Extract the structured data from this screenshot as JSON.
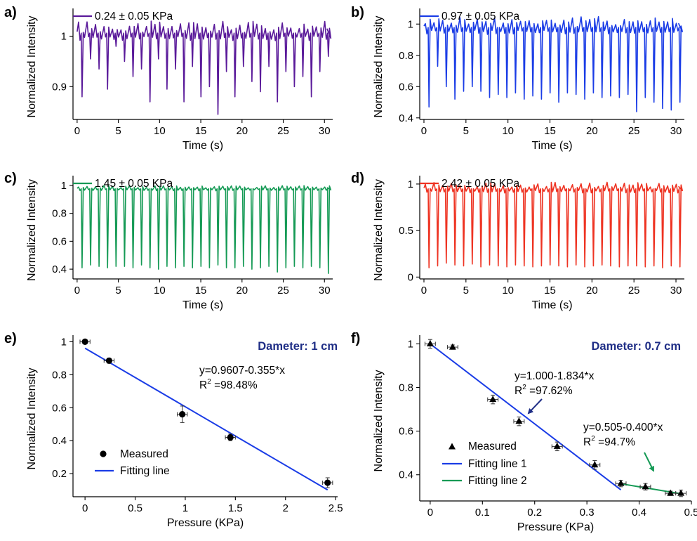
{
  "colors": {
    "purple": "#5a1a9a",
    "blue": "#1a3ce6",
    "green": "#159a55",
    "red": "#ee3322",
    "navy": "#1f2e86",
    "black": "#000000"
  },
  "chart_data": [
    {
      "panel": "a)",
      "type": "line",
      "xlabel": "Time (s)",
      "ylabel": "Normalized Intensity",
      "xlim": [
        -0.5,
        31
      ],
      "ylim": [
        0.835,
        1.055
      ],
      "xticks": [
        "0",
        "5",
        "10",
        "15",
        "20",
        "25",
        "30"
      ],
      "yticks": [
        "0.9",
        "1"
      ],
      "ytick_values": [
        0.9,
        1.0
      ],
      "series": [
        {
          "name": "0.24 ± 0.05 KPa",
          "color": "#5a1a9a"
        }
      ],
      "pattern": {
        "start": 0,
        "end": 30.3,
        "period": 1.03,
        "baseline": 1.0,
        "peak": 1.03,
        "min_values": [
          0.88,
          0.955,
          0.935,
          0.895,
          0.98,
          0.95,
          0.92,
          0.935,
          0.87,
          0.955,
          0.895,
          0.935,
          0.87,
          0.94,
          0.88,
          0.9,
          0.845,
          0.93,
          0.88,
          0.94,
          0.91,
          0.89,
          0.94,
          0.87,
          0.93,
          0.9,
          0.92,
          0.88,
          0.93,
          0.96
        ]
      }
    },
    {
      "panel": "b)",
      "type": "line",
      "xlabel": "Time (s)",
      "ylabel": "Normalized Intensity",
      "xlim": [
        -0.5,
        31
      ],
      "ylim": [
        0.39,
        1.1
      ],
      "xticks": [
        "0",
        "5",
        "10",
        "15",
        "20",
        "25",
        "30"
      ],
      "yticks": [
        "0.4",
        "0.6",
        "0.8",
        "1"
      ],
      "ytick_values": [
        0.4,
        0.6,
        0.8,
        1.0
      ],
      "series": [
        {
          "name": "0.97 ± 0.05 KPa",
          "color": "#1a3ce6"
        }
      ],
      "pattern": {
        "start": 0,
        "end": 30.3,
        "period": 1.03,
        "baseline": 0.96,
        "peak": 1.05,
        "min_values": [
          0.47,
          0.73,
          0.6,
          0.52,
          0.57,
          0.6,
          0.57,
          0.53,
          0.55,
          0.53,
          0.56,
          0.52,
          0.54,
          0.52,
          0.56,
          0.5,
          0.56,
          0.55,
          0.52,
          0.56,
          0.53,
          0.54,
          0.53,
          0.55,
          0.44,
          0.53,
          0.5,
          0.46,
          0.45,
          0.5
        ]
      }
    },
    {
      "panel": "c)",
      "type": "line",
      "xlabel": "Time (s)",
      "ylabel": "Normalized Intensity",
      "xlim": [
        -0.5,
        31
      ],
      "ylim": [
        0.33,
        1.07
      ],
      "xticks": [
        "0",
        "5",
        "10",
        "15",
        "20",
        "25",
        "30"
      ],
      "yticks": [
        "0.4",
        "0.6",
        "0.8",
        "1"
      ],
      "ytick_values": [
        0.4,
        0.6,
        0.8,
        1.0
      ],
      "series": [
        {
          "name": "1.45 ± 0.05 KPa",
          "color": "#159a55"
        }
      ],
      "pattern": {
        "start": 0,
        "end": 30.3,
        "period": 1.03,
        "baseline": 0.97,
        "peak": 1.0,
        "min_values": [
          0.41,
          0.43,
          0.42,
          0.41,
          0.42,
          0.42,
          0.41,
          0.43,
          0.41,
          0.4,
          0.42,
          0.41,
          0.42,
          0.41,
          0.42,
          0.41,
          0.43,
          0.41,
          0.41,
          0.42,
          0.4,
          0.41,
          0.42,
          0.38,
          0.41,
          0.42,
          0.41,
          0.42,
          0.41,
          0.37
        ]
      }
    },
    {
      "panel": "d)",
      "type": "line",
      "xlabel": "Time (s)",
      "ylabel": "Normalized Intensity",
      "xlim": [
        -0.5,
        31
      ],
      "ylim": [
        -0.02,
        1.09
      ],
      "xticks": [
        "0",
        "5",
        "10",
        "15",
        "20",
        "25",
        "30"
      ],
      "yticks": [
        "0",
        "0.5",
        "1"
      ],
      "ytick_values": [
        0,
        0.5,
        1.0
      ],
      "series": [
        {
          "name": "2.42 ± 0.05 KPa",
          "color": "#ee3322"
        }
      ],
      "pattern": {
        "start": 0,
        "end": 30.3,
        "period": 1.03,
        "baseline": 0.93,
        "peak": 1.02,
        "min_values": [
          0.1,
          0.12,
          0.15,
          0.13,
          0.12,
          0.14,
          0.11,
          0.13,
          0.12,
          0.11,
          0.13,
          0.12,
          0.11,
          0.12,
          0.13,
          0.12,
          0.11,
          0.13,
          0.11,
          0.12,
          0.13,
          0.12,
          0.11,
          0.12,
          0.12,
          0.11,
          0.12,
          0.1,
          0.12,
          0.11
        ]
      }
    },
    {
      "panel": "e)",
      "type": "scatter",
      "title": "Dameter: 1 cm",
      "xlabel": "Pressure (KPa)",
      "ylabel": "Normalized Intensity",
      "xlim": [
        -0.12,
        2.52
      ],
      "ylim": [
        0.06,
        1.04
      ],
      "xticks": [
        "0",
        "0.5",
        "1",
        "1.5",
        "2",
        "2.5"
      ],
      "xtick_values": [
        0,
        0.5,
        1.0,
        1.5,
        2.0,
        2.5
      ],
      "yticks": [
        "0.2",
        "0.4",
        "0.6",
        "0.8",
        "1"
      ],
      "ytick_values": [
        0.2,
        0.4,
        0.6,
        0.8,
        1.0
      ],
      "points": [
        {
          "x": 0,
          "y": 1.0,
          "xerr": 0.05,
          "yerr": 0.01
        },
        {
          "x": 0.24,
          "y": 0.885,
          "xerr": 0.05,
          "yerr": 0.015
        },
        {
          "x": 0.97,
          "y": 0.56,
          "xerr": 0.05,
          "yerr": 0.05
        },
        {
          "x": 1.45,
          "y": 0.42,
          "xerr": 0.05,
          "yerr": 0.02
        },
        {
          "x": 2.42,
          "y": 0.145,
          "xerr": 0.05,
          "yerr": 0.03
        }
      ],
      "fit": {
        "x": [
          0,
          2.42
        ],
        "y": [
          0.9607,
          0.1016
        ]
      },
      "legend": [
        "Measured",
        "Fitting line"
      ],
      "annotation": [
        "y=0.9607-0.355*x",
        "R",
        "2",
        " =98.48%"
      ]
    },
    {
      "panel": "f)",
      "type": "scatter",
      "title": "Dameter: 0.7 cm",
      "xlabel": "Pressure (KPa)",
      "ylabel": "Normalized Intensity",
      "xlim": [
        -0.02,
        0.5
      ],
      "ylim": [
        0.28,
        1.04
      ],
      "xticks": [
        "0",
        "0.1",
        "0.2",
        "0.3",
        "0.4",
        "0.5"
      ],
      "xtick_values": [
        0,
        0.1,
        0.2,
        0.3,
        0.4,
        0.5
      ],
      "yticks": [
        "0.4",
        "0.6",
        "0.8",
        "1"
      ],
      "ytick_values": [
        0.4,
        0.6,
        0.8,
        1.0
      ],
      "points": [
        {
          "x": 0,
          "y": 1.0,
          "xerr": 0.01,
          "yerr": 0.02
        },
        {
          "x": 0.043,
          "y": 0.985,
          "xerr": 0.01,
          "yerr": 0.01
        },
        {
          "x": 0.12,
          "y": 0.745,
          "xerr": 0.01,
          "yerr": 0.02
        },
        {
          "x": 0.17,
          "y": 0.645,
          "xerr": 0.01,
          "yerr": 0.02
        },
        {
          "x": 0.243,
          "y": 0.53,
          "xerr": 0.01,
          "yerr": 0.02
        },
        {
          "x": 0.315,
          "y": 0.445,
          "xerr": 0.01,
          "yerr": 0.02
        },
        {
          "x": 0.365,
          "y": 0.36,
          "xerr": 0.01,
          "yerr": 0.015
        },
        {
          "x": 0.412,
          "y": 0.345,
          "xerr": 0.01,
          "yerr": 0.015
        },
        {
          "x": 0.46,
          "y": 0.315,
          "xerr": 0.01,
          "yerr": 0.01
        },
        {
          "x": 0.48,
          "y": 0.315,
          "xerr": 0.01,
          "yerr": 0.015
        }
      ],
      "fit1": {
        "x": [
          0,
          0.365
        ],
        "y": [
          1.0,
          0.331
        ]
      },
      "fit2": {
        "x": [
          0.365,
          0.48
        ],
        "y": [
          0.359,
          0.313
        ]
      },
      "legend": [
        "Measured",
        "Fitting line 1",
        "Fitting line 2"
      ],
      "annotation1": [
        "y=1.000-1.834*x",
        "R",
        "2",
        " =97.62%"
      ],
      "annotation2": [
        "y=0.505-0.400*x",
        "R",
        "2",
        " =94.7%"
      ]
    }
  ]
}
